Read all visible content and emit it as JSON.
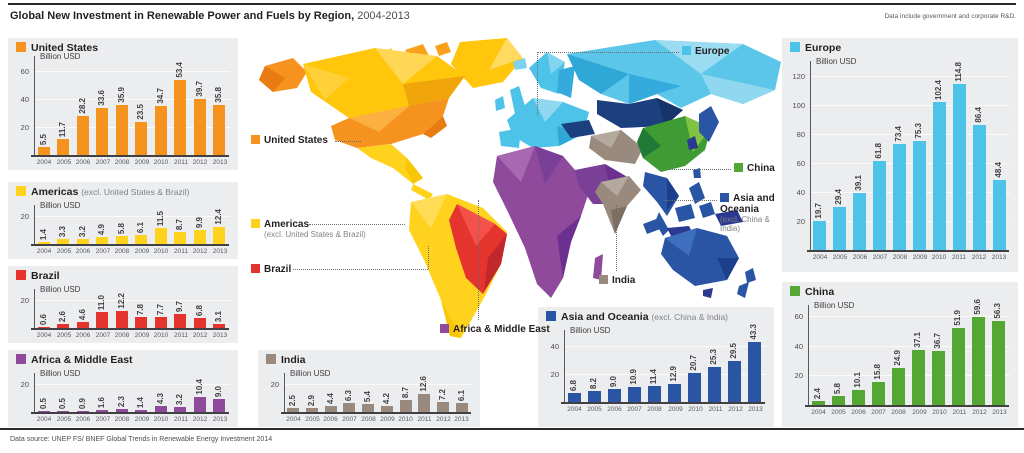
{
  "header": {
    "title": "Global New Investment in Renewable Power and Fuels by Region,",
    "period": " 2004-2013",
    "note": "Data include government and corporate R&D."
  },
  "footer": {
    "source": "Data source: UNEP FS/ BNEF Global Trends in Renewable Energy Investment 2014"
  },
  "map": {
    "labels": [
      {
        "label": "United States",
        "color": "#F6921E"
      },
      {
        "label": "Americas",
        "sub": "(excl. United States & Brazil)",
        "color": "#FFD21E"
      },
      {
        "label": "Brazil",
        "color": "#E5332E"
      },
      {
        "label": "Africa & Middle East",
        "color": "#8F4A9C"
      },
      {
        "label": "Europe",
        "color": "#4EC3E9"
      },
      {
        "label": "China",
        "color": "#55A733"
      },
      {
        "label": "Asia and Oceania",
        "sub": "(excl. China & India)",
        "color": "#2A55A4"
      },
      {
        "label": "India",
        "color": "#9A8A7D"
      }
    ]
  },
  "chart_data": [
    {
      "type": "bar",
      "region": "United States",
      "unit": "Billion USD",
      "color": "#F6921E",
      "categories": [
        "2004",
        "2005",
        "2006",
        "2007",
        "2008",
        "2009",
        "2010",
        "2011",
        "2012",
        "2013"
      ],
      "values": [
        "5.5",
        "11.7",
        "28.2",
        "33.6",
        "35.9",
        "23.5",
        "34.7",
        "53.4",
        "39.7",
        "35.8"
      ],
      "yticks": [
        "20",
        "40",
        "60"
      ],
      "ylim": [
        0,
        65
      ],
      "grid": true
    },
    {
      "type": "bar",
      "region": "Americas",
      "subtitle": "(excl. United States & Brazil)",
      "unit": "Billion USD",
      "color": "#FFD21E",
      "categories": [
        "2004",
        "2005",
        "2006",
        "2007",
        "2008",
        "2009",
        "2010",
        "2011",
        "2012",
        "2013"
      ],
      "values": [
        "1.4",
        "3.3",
        "3.2",
        "4.9",
        "5.8",
        "6.1",
        "11.5",
        "8.7",
        "9.9",
        "12.4"
      ],
      "yticks": [
        "20"
      ],
      "ylim": [
        0,
        22
      ],
      "grid": true
    },
    {
      "type": "bar",
      "region": "Brazil",
      "unit": "Billion USD",
      "color": "#E5332E",
      "categories": [
        "2004",
        "2005",
        "2006",
        "2007",
        "2008",
        "2009",
        "2010",
        "2011",
        "2012",
        "2013"
      ],
      "values": [
        "0.6",
        "2.6",
        "4.6",
        "11.0",
        "12.2",
        "7.8",
        "7.7",
        "9.7",
        "6.8",
        "3.1"
      ],
      "yticks": [
        "20"
      ],
      "ylim": [
        0,
        22
      ],
      "grid": true
    },
    {
      "type": "bar",
      "region": "Africa & Middle East",
      "unit": "Billion USD",
      "color": "#8F4A9C",
      "categories": [
        "2004",
        "2005",
        "2006",
        "2007",
        "2008",
        "2009",
        "2010",
        "2011",
        "2012",
        "2013"
      ],
      "values": [
        "0.5",
        "0.5",
        "0.9",
        "1.6",
        "2.3",
        "1.4",
        "4.3",
        "3.2",
        "10.4",
        "9.0"
      ],
      "yticks": [
        "20"
      ],
      "ylim": [
        0,
        22
      ],
      "grid": true
    },
    {
      "type": "bar",
      "region": "India",
      "unit": "Billion USD",
      "color": "#9A8A7D",
      "categories": [
        "2004",
        "2005",
        "2006",
        "2007",
        "2008",
        "2009",
        "2010",
        "2011",
        "2012",
        "2013"
      ],
      "values": [
        "2.5",
        "2.9",
        "4.4",
        "6.3",
        "5.4",
        "4.2",
        "8.7",
        "12.6",
        "7.2",
        "6.1"
      ],
      "yticks": [
        "20"
      ],
      "ylim": [
        0,
        22
      ],
      "grid": true
    },
    {
      "type": "bar",
      "region": "Asia and Oceania",
      "subtitle": "(excl. China & India)",
      "unit": "Billion USD",
      "color": "#2A55A4",
      "categories": [
        "2004",
        "2005",
        "2006",
        "2007",
        "2008",
        "2009",
        "2010",
        "2011",
        "2012",
        "2013"
      ],
      "values": [
        "6.8",
        "8.2",
        "9.0",
        "10.9",
        "11.4",
        "12.9",
        "20.7",
        "25.3",
        "29.5",
        "43.3"
      ],
      "yticks": [
        "20",
        "40"
      ],
      "ylim": [
        0,
        46
      ],
      "grid": true
    },
    {
      "type": "bar",
      "region": "Europe",
      "unit": "Billion USD",
      "color": "#4EC3E9",
      "categories": [
        "2004",
        "2005",
        "2006",
        "2007",
        "2008",
        "2009",
        "2010",
        "2011",
        "2012",
        "2013"
      ],
      "values": [
        "19.7",
        "29.4",
        "39.1",
        "61.8",
        "73.4",
        "75.3",
        "102.4",
        "114.8",
        "86.4",
        "48.4"
      ],
      "yticks": [
        "20",
        "40",
        "60",
        "80",
        "100",
        "120"
      ],
      "ylim": [
        0,
        125
      ],
      "grid": true
    },
    {
      "type": "bar",
      "region": "China",
      "unit": "Billion USD",
      "color": "#55A733",
      "categories": [
        "2004",
        "2005",
        "2006",
        "2007",
        "2008",
        "2009",
        "2010",
        "2011",
        "2012",
        "2013"
      ],
      "values": [
        "2.4",
        "5.8",
        "10.1",
        "15.8",
        "24.9",
        "37.1",
        "36.7",
        "51.9",
        "59.6",
        "56.3"
      ],
      "yticks": [
        "20",
        "40",
        "60"
      ],
      "ylim": [
        0,
        62
      ],
      "grid": true
    }
  ]
}
